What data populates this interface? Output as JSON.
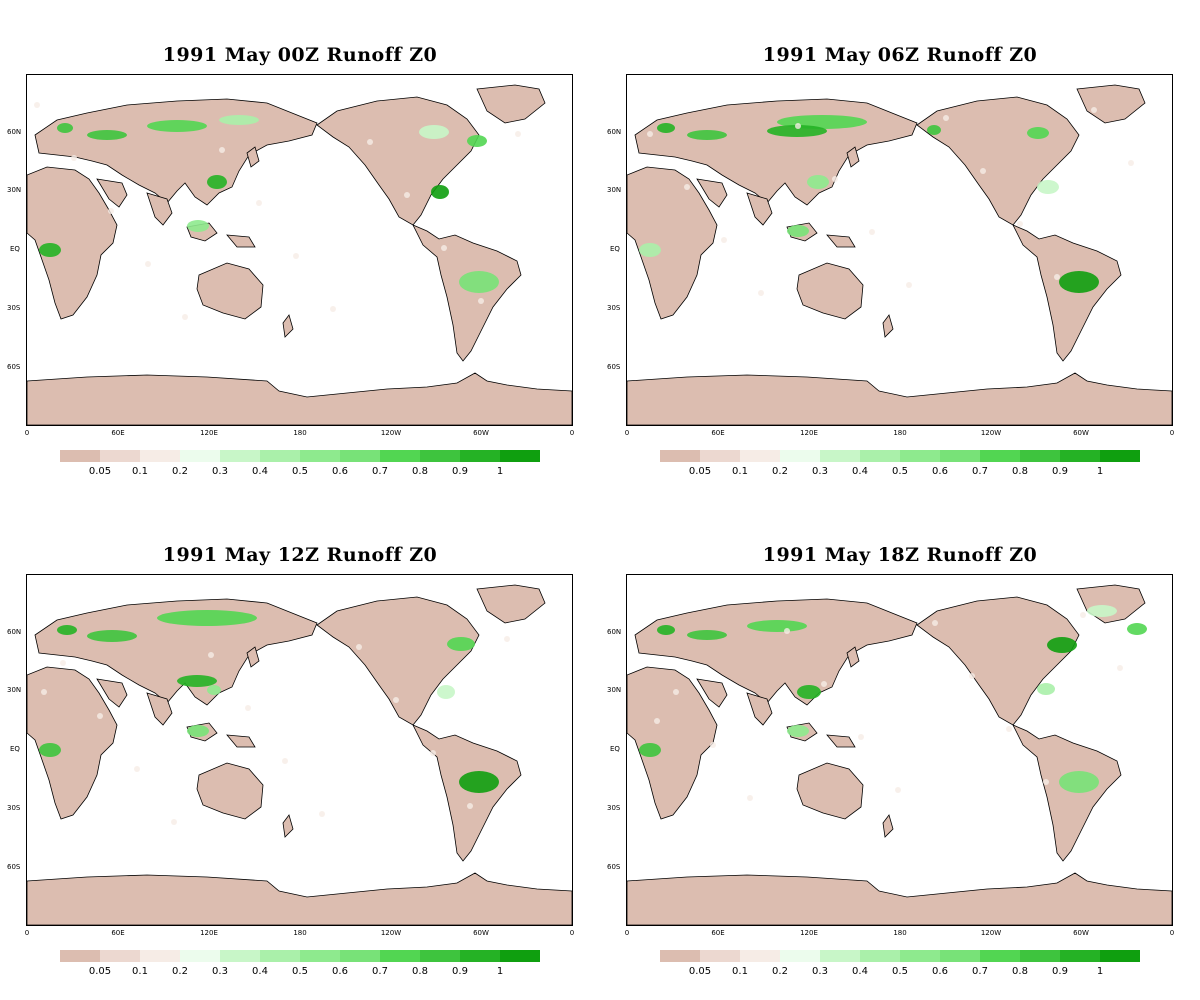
{
  "colors": {
    "land_dry": "#dcbdb0",
    "coast": "#000000",
    "scale": [
      "#dcbdb0",
      "#ecd8d0",
      "#f6ece6",
      "#ecfced",
      "#c8f6c8",
      "#aaf0aa",
      "#8eea8e",
      "#78e278",
      "#52d652",
      "#3ec43e",
      "#25b225",
      "#0f9f0f"
    ]
  },
  "colorbar_labels": [
    "0.05",
    "0.1",
    "0.2",
    "0.3",
    "0.4",
    "0.5",
    "0.6",
    "0.7",
    "0.8",
    "0.9",
    "1"
  ],
  "lat_labels": [
    "60N",
    "30N",
    "EQ",
    "30S",
    "60S"
  ],
  "lon_labels": [
    "0",
    "60E",
    "120E",
    "180",
    "120W",
    "60W",
    "0"
  ],
  "panels": [
    {
      "title": "1991 May 00Z Runoff Z0"
    },
    {
      "title": "1991  May 06Z Runoff Z0"
    },
    {
      "title": "1991  May 12Z Runoff Z0"
    },
    {
      "title": "1991  May 18Z Runoff Z0"
    }
  ]
}
